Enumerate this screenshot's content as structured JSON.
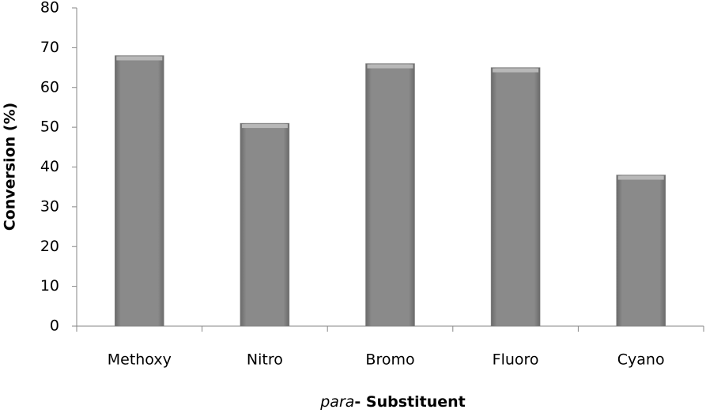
{
  "chart_data": {
    "type": "bar",
    "y_label": "Conversion (%)",
    "x_label": {
      "italic": "para",
      "rest": "- Substituent"
    },
    "categories": [
      "Methoxy",
      "Nitro",
      "Bromo",
      "Fluoro",
      "Cyano"
    ],
    "values": [
      68,
      51,
      66,
      65,
      38
    ],
    "color": "#808080",
    "ylim": [
      0,
      80
    ],
    "yticks": [
      0,
      10,
      20,
      30,
      40,
      50,
      60,
      70,
      80
    ],
    "grid": false
  }
}
